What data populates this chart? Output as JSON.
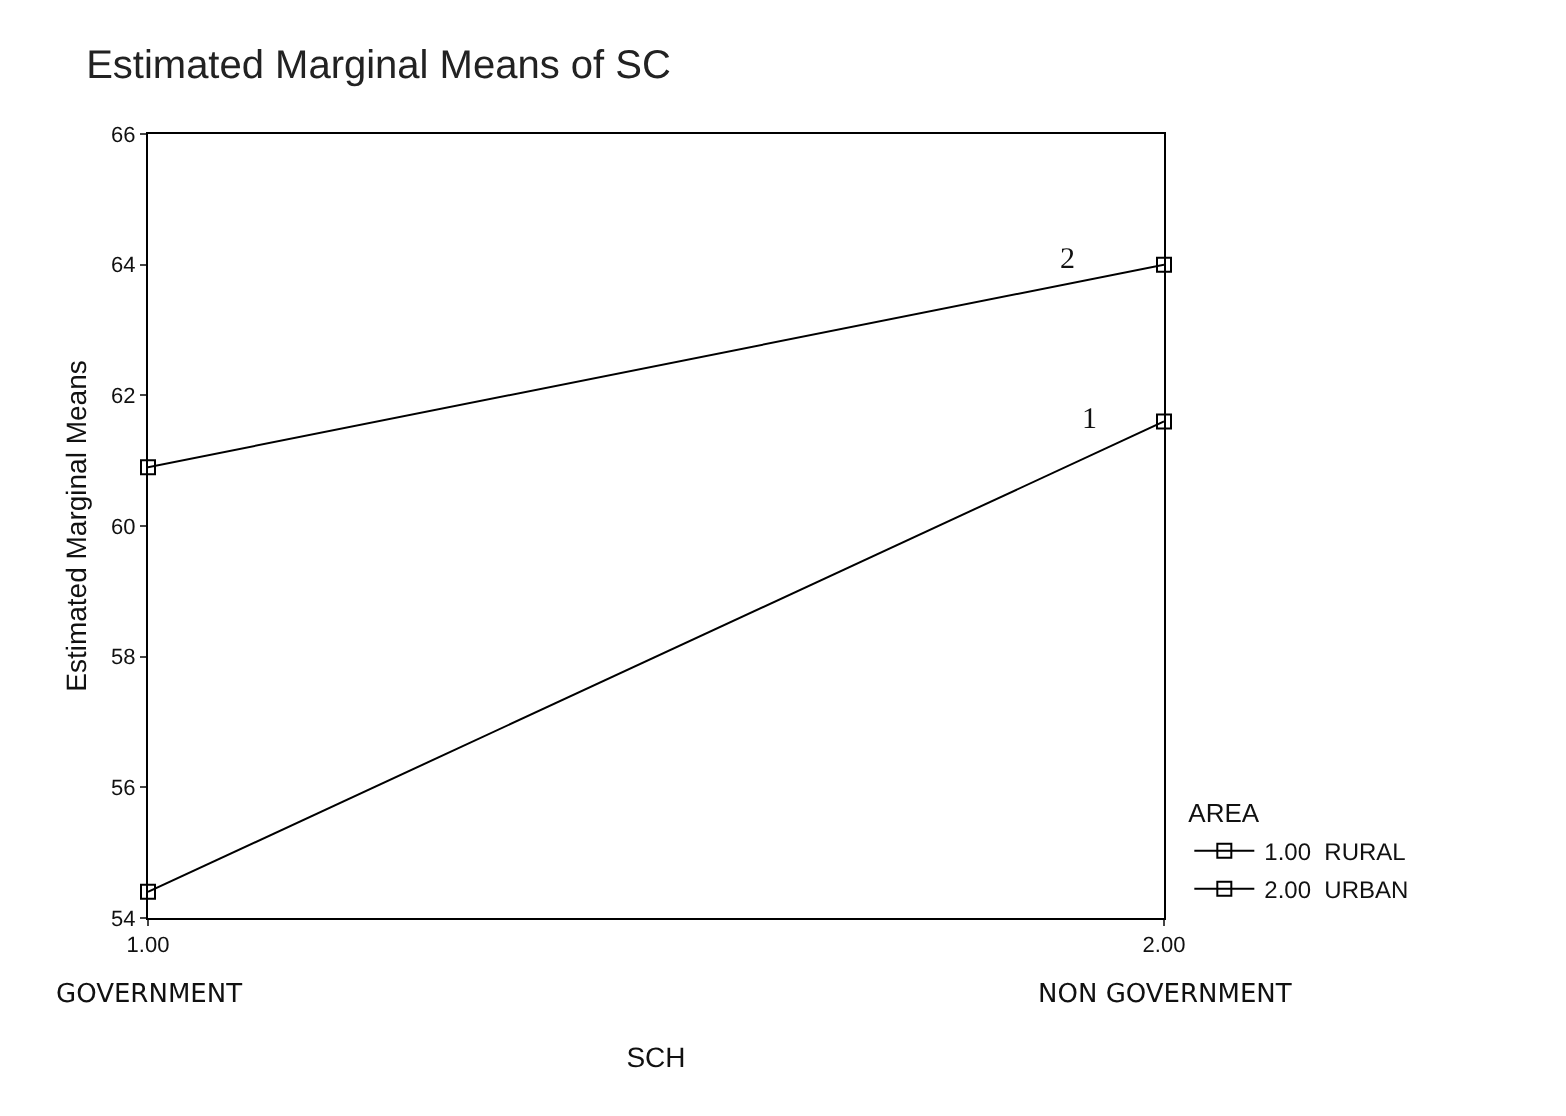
{
  "chart_data": {
    "type": "line",
    "title": "Estimated Marginal Means of SC",
    "xlabel": "SCH",
    "ylabel": "Estimated Marginal Means",
    "legend_title": "AREA",
    "x": [
      1,
      2
    ],
    "xlim": [
      1,
      2
    ],
    "xticks": [
      {
        "value": 1,
        "label": "1.00"
      },
      {
        "value": 2,
        "label": "2.00"
      }
    ],
    "ylim": [
      54,
      66
    ],
    "yticks": [
      54,
      56,
      58,
      60,
      62,
      64,
      66
    ],
    "series": [
      {
        "name": "1.00  RURAL",
        "color": "#000000",
        "values": [
          54.4,
          61.6
        ]
      },
      {
        "name": "2.00  URBAN",
        "color": "#000000",
        "values": [
          60.9,
          64.0
        ]
      }
    ],
    "annotations": [
      "GOVERNMENT",
      "NON GOVERNMENT",
      "1",
      "2"
    ],
    "marker": "square",
    "line_style": "solid",
    "grid": false,
    "legend": "bottom right"
  }
}
